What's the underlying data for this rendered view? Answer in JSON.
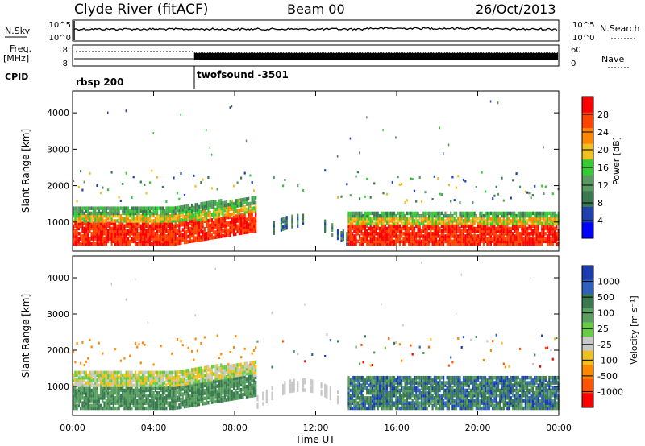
{
  "header": {
    "station": "Clyde River (fitACF)",
    "beam": "Beam 00",
    "date": "26/Oct/2013"
  },
  "strip_labels": {
    "nsky": "N.Sky",
    "nsearch": "N.Search",
    "freq_line1": "Freq.",
    "freq_line2": "[MHz]",
    "nave": "Nave",
    "cpid": "CPID",
    "nsky_ticks": [
      "10^5",
      "10^0"
    ],
    "nsearch_ticks": [
      "10^5",
      "10^0"
    ],
    "freq_ticks": [
      "18",
      "8"
    ],
    "nave_ticks": [
      "60",
      "0"
    ],
    "cpid_segments": [
      {
        "label": "rbsp 200",
        "start_hour": 0
      },
      {
        "label": "twofsound -3501",
        "start_hour": 6
      }
    ]
  },
  "chart_data": [
    {
      "type": "heatmap",
      "name": "power",
      "ylabel": "Slant Range [km]",
      "xlabel": "",
      "yticks": [
        "1000",
        "2000",
        "3000",
        "4000"
      ],
      "ylim": [
        200,
        4600
      ],
      "xlim": [
        0,
        24
      ],
      "colorbar_label": "Power [dB]",
      "colorbar_ticks": [
        "4",
        "8",
        "12",
        "16",
        "20",
        "24",
        "28"
      ],
      "colorbar_colors": [
        "#0000ff",
        "#2040b0",
        "#3a7a50",
        "#5a9a60",
        "#33cc33",
        "#f0c020",
        "#ff8800",
        "#ff4400",
        "#ff0000"
      ]
    },
    {
      "type": "heatmap",
      "name": "velocity",
      "ylabel": "Slant Range [km]",
      "xlabel": "Time UT",
      "xticks": [
        "00:00",
        "04:00",
        "08:00",
        "12:00",
        "16:00",
        "20:00",
        "00:00"
      ],
      "yticks": [
        "1000",
        "2000",
        "3000",
        "4000"
      ],
      "ylim": [
        200,
        4600
      ],
      "xlim": [
        0,
        24
      ],
      "colorbar_label": "Velocity [m s⁻¹]",
      "colorbar_ticks": [
        "1000",
        "500",
        "100",
        "25",
        "-25",
        "-100",
        "-500",
        "-1000"
      ],
      "colorbar_colors": [
        "#1a3cb0",
        "#3060c0",
        "#3a7a50",
        "#5aa060",
        "#66cc44",
        "#c8c8c8",
        "#f0c020",
        "#ff8800",
        "#ff5500",
        "#ff0000"
      ]
    }
  ]
}
